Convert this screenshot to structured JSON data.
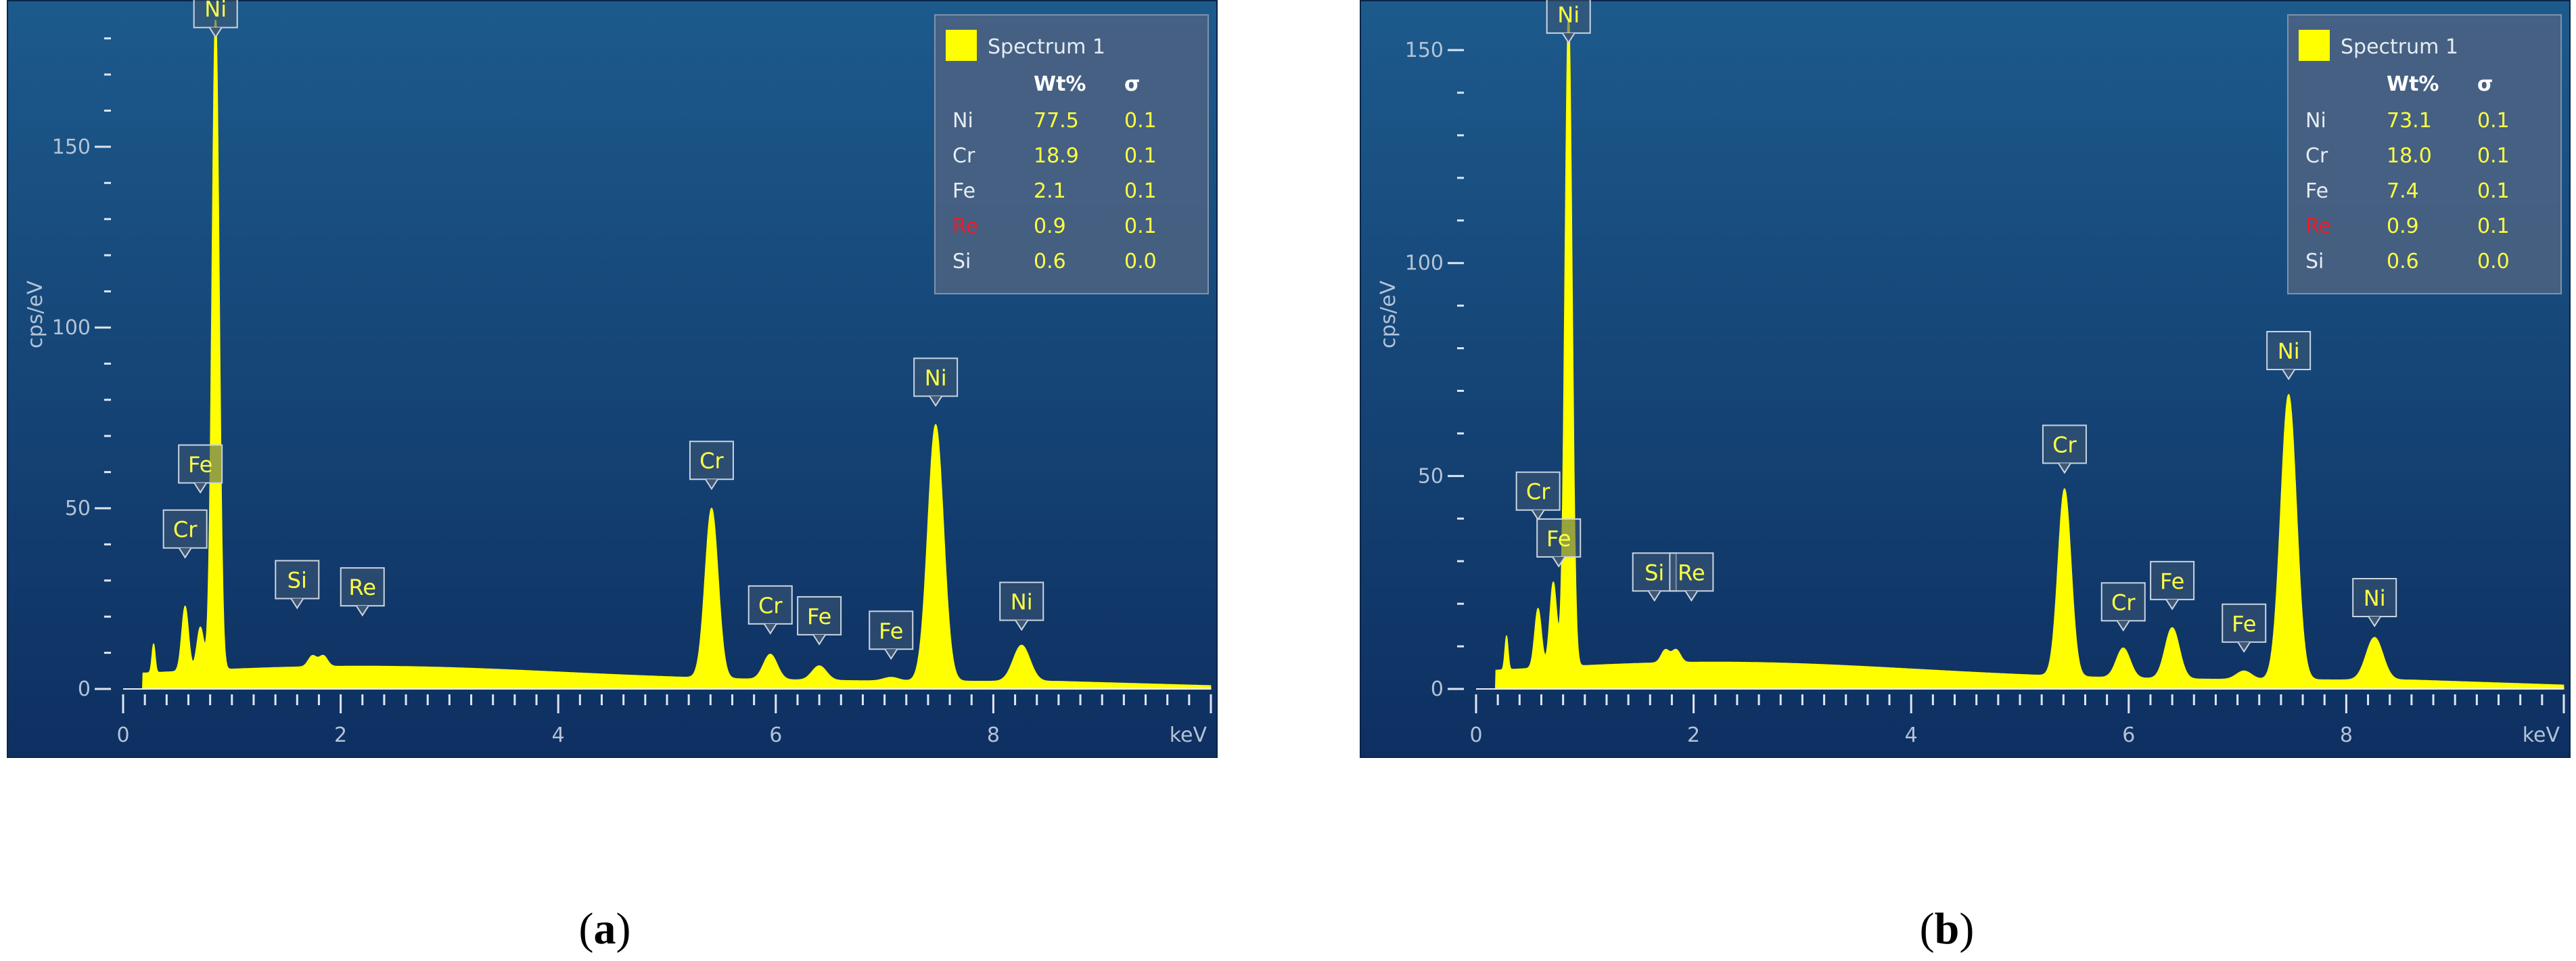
{
  "theme": {
    "bg_top": "#1d5a8c",
    "bg_bottom": "#0e2f61",
    "spectrum_fill": "#ffff00",
    "label_text": "#ffff44",
    "axis_text": "#b3c3d6",
    "legend_text": "#e6ecf3",
    "highlight_element": "#e5202b"
  },
  "chart_data": [
    {
      "type": "area",
      "caption": {
        "open": "(",
        "letter": "a",
        "close": ")"
      },
      "xlabel": "keV",
      "ylabel": "cps/eV",
      "xlim": [
        0,
        10
      ],
      "ylim": [
        0,
        185
      ],
      "xticks": [
        "0",
        "2",
        "4",
        "6",
        "8"
      ],
      "yticks": [
        "0",
        "50",
        "100",
        "150"
      ],
      "legend": {
        "title": "Spectrum 1",
        "headers": [
          "Wt%",
          "σ"
        ],
        "rows": [
          {
            "element": "Ni",
            "wt": "77.5",
            "sigma": "0.1"
          },
          {
            "element": "Cr",
            "wt": "18.9",
            "sigma": "0.1"
          },
          {
            "element": "Fe",
            "wt": "2.1",
            "sigma": "0.1"
          },
          {
            "element": "Re",
            "wt": "0.9",
            "sigma": "0.1"
          },
          {
            "element": "Si",
            "wt": "0.6",
            "sigma": "0.0"
          }
        ],
        "highlight": "Re"
      },
      "peaks": [
        {
          "element": "Cr",
          "energy": 0.57,
          "height": 18
        },
        {
          "element": "Fe",
          "energy": 0.71,
          "height": 12
        },
        {
          "element": "Ni",
          "energy": 0.85,
          "height": 183
        },
        {
          "element": "Si",
          "energy": 1.74,
          "height": 3
        },
        {
          "element": "Re",
          "energy": 1.84,
          "height": 3
        },
        {
          "element": "Cr",
          "energy": 5.41,
          "height": 47
        },
        {
          "element": "Cr",
          "energy": 5.95,
          "height": 7
        },
        {
          "element": "Fe",
          "energy": 6.4,
          "height": 4
        },
        {
          "element": "Fe",
          "energy": 7.06,
          "height": 1
        },
        {
          "element": "Ni",
          "energy": 7.47,
          "height": 71
        },
        {
          "element": "Ni",
          "energy": 8.26,
          "height": 10
        }
      ],
      "annotations": [
        {
          "text": "Cr",
          "energy": 0.57,
          "label_y": 39
        },
        {
          "text": "Fe",
          "energy": 0.71,
          "label_y": 57
        },
        {
          "text": "Ni",
          "energy": 0.85,
          "label_y": 183
        },
        {
          "text": "Si",
          "energy": 1.6,
          "label_y": 25
        },
        {
          "text": "Re",
          "energy": 2.2,
          "label_y": 23
        },
        {
          "text": "Cr",
          "energy": 5.41,
          "label_y": 58
        },
        {
          "text": "Cr",
          "energy": 5.95,
          "label_y": 18
        },
        {
          "text": "Fe",
          "energy": 6.4,
          "label_y": 15
        },
        {
          "text": "Fe",
          "energy": 7.06,
          "label_y": 11
        },
        {
          "text": "Ni",
          "energy": 7.47,
          "label_y": 81
        },
        {
          "text": "Ni",
          "energy": 8.26,
          "label_y": 19
        }
      ]
    },
    {
      "type": "area",
      "caption": {
        "open": "(",
        "letter": "b",
        "close": ")"
      },
      "xlabel": "keV",
      "ylabel": "cps/eV",
      "xlim": [
        0,
        10
      ],
      "ylim": [
        0,
        157
      ],
      "xticks": [
        "0",
        "2",
        "4",
        "6",
        "8"
      ],
      "yticks": [
        "0",
        "50",
        "100",
        "150"
      ],
      "legend": {
        "title": "Spectrum 1",
        "headers": [
          "Wt%",
          "σ"
        ],
        "rows": [
          {
            "element": "Ni",
            "wt": "73.1",
            "sigma": "0.1"
          },
          {
            "element": "Cr",
            "wt": "18.0",
            "sigma": "0.1"
          },
          {
            "element": "Fe",
            "wt": "7.4",
            "sigma": "0.1"
          },
          {
            "element": "Re",
            "wt": "0.9",
            "sigma": "0.1"
          },
          {
            "element": "Si",
            "wt": "0.6",
            "sigma": "0.0"
          }
        ],
        "highlight": "Re"
      },
      "peaks": [
        {
          "element": "Cr",
          "energy": 0.57,
          "height": 14
        },
        {
          "element": "Fe",
          "energy": 0.71,
          "height": 20
        },
        {
          "element": "Ni",
          "energy": 0.85,
          "height": 155
        },
        {
          "element": "Si",
          "energy": 1.74,
          "height": 3
        },
        {
          "element": "Re",
          "energy": 1.84,
          "height": 3
        },
        {
          "element": "Cr",
          "energy": 5.41,
          "height": 44
        },
        {
          "element": "Cr",
          "energy": 5.95,
          "height": 7
        },
        {
          "element": "Fe",
          "energy": 6.4,
          "height": 12
        },
        {
          "element": "Fe",
          "energy": 7.06,
          "height": 2
        },
        {
          "element": "Ni",
          "energy": 7.47,
          "height": 67
        },
        {
          "element": "Ni",
          "energy": 8.26,
          "height": 10
        }
      ],
      "annotations": [
        {
          "text": "Cr",
          "energy": 0.57,
          "label_y": 42
        },
        {
          "text": "Fe",
          "energy": 0.76,
          "label_y": 31
        },
        {
          "text": "Ni",
          "energy": 0.85,
          "label_y": 154
        },
        {
          "text": "Si",
          "energy": 1.64,
          "label_y": 23
        },
        {
          "text": "Re",
          "energy": 1.98,
          "label_y": 23
        },
        {
          "text": "Cr",
          "energy": 5.41,
          "label_y": 53
        },
        {
          "text": "Cr",
          "energy": 5.95,
          "label_y": 16
        },
        {
          "text": "Fe",
          "energy": 6.4,
          "label_y": 21
        },
        {
          "text": "Fe",
          "energy": 7.06,
          "label_y": 11
        },
        {
          "text": "Ni",
          "energy": 7.47,
          "label_y": 75
        },
        {
          "text": "Ni",
          "energy": 8.26,
          "label_y": 17
        }
      ]
    }
  ]
}
